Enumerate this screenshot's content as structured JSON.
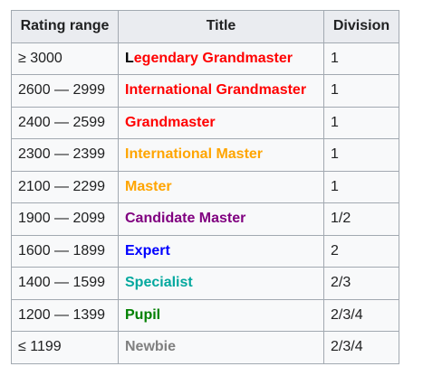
{
  "table": {
    "headers": [
      "Rating range",
      "Title",
      "Division"
    ],
    "rows": [
      {
        "range": "≥ 3000",
        "title_first": "L",
        "title_rest": "egendary Grandmaster",
        "title_color": "#ff0000",
        "division": "1"
      },
      {
        "range": "2600 — 2999",
        "title_first": "",
        "title_rest": "International Grandmaster",
        "title_color": "#ff0000",
        "division": "1"
      },
      {
        "range": "2400 — 2599",
        "title_first": "",
        "title_rest": "Grandmaster",
        "title_color": "#ff0000",
        "division": "1"
      },
      {
        "range": "2300 — 2399",
        "title_first": "",
        "title_rest": "International Master",
        "title_color": "#ffa500",
        "division": "1"
      },
      {
        "range": "2100 — 2299",
        "title_first": "",
        "title_rest": "Master",
        "title_color": "#ffa500",
        "division": "1"
      },
      {
        "range": "1900 — 2099",
        "title_first": "",
        "title_rest": "Candidate Master",
        "title_color": "#800080",
        "division": "1/2"
      },
      {
        "range": "1600 — 1899",
        "title_first": "",
        "title_rest": "Expert",
        "title_color": "#0000ff",
        "division": "2"
      },
      {
        "range": "1400 — 1599",
        "title_first": "",
        "title_rest": "Specialist",
        "title_color": "#03a89e",
        "division": "2/3"
      },
      {
        "range": "1200 — 1399",
        "title_first": "",
        "title_rest": "Pupil",
        "title_color": "#008000",
        "division": "2/3/4"
      },
      {
        "range": "≤ 1199",
        "title_first": "",
        "title_rest": "Newbie",
        "title_color": "#808080",
        "division": "2/3/4"
      }
    ]
  }
}
